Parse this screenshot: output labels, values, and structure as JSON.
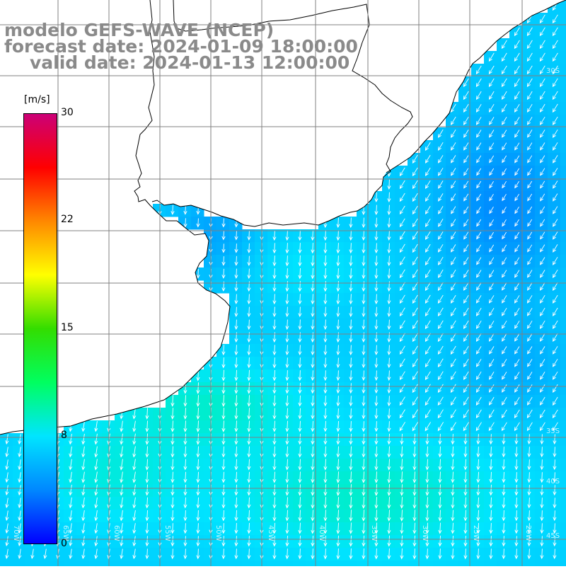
{
  "title": {
    "line1": "modelo GEFS-WAVE (NCEP)",
    "line2": "forecast date: 2024-01-09 18:00:00",
    "line3": "valid date: 2024-01-13 12:00:00"
  },
  "colorbar": {
    "unit": "[m/s]",
    "ticks": [
      {
        "label": "30",
        "value": 30
      },
      {
        "label": "22",
        "value": 22
      },
      {
        "label": "15",
        "value": 15
      },
      {
        "label": "8",
        "value": 8
      },
      {
        "label": "0",
        "value": 0
      }
    ],
    "colors": [
      "#0000ff",
      "#0088ff",
      "#00e5ff",
      "#00ff60",
      "#33dd00",
      "#ffff00",
      "#ff8800",
      "#ff0000",
      "#cc0077"
    ]
  },
  "lat_labels": [
    "30S",
    "35S",
    "40S",
    "45S"
  ],
  "lon_labels": [
    "70W",
    "65W",
    "60W",
    "55W",
    "50W",
    "45W",
    "40W",
    "35W",
    "30W",
    "25W",
    "20W"
  ],
  "colors": {
    "land": "#ffffff",
    "grid": "#808080",
    "coast": "#000000",
    "arrow": "#ffffff",
    "title": "#8a8a8a"
  }
}
